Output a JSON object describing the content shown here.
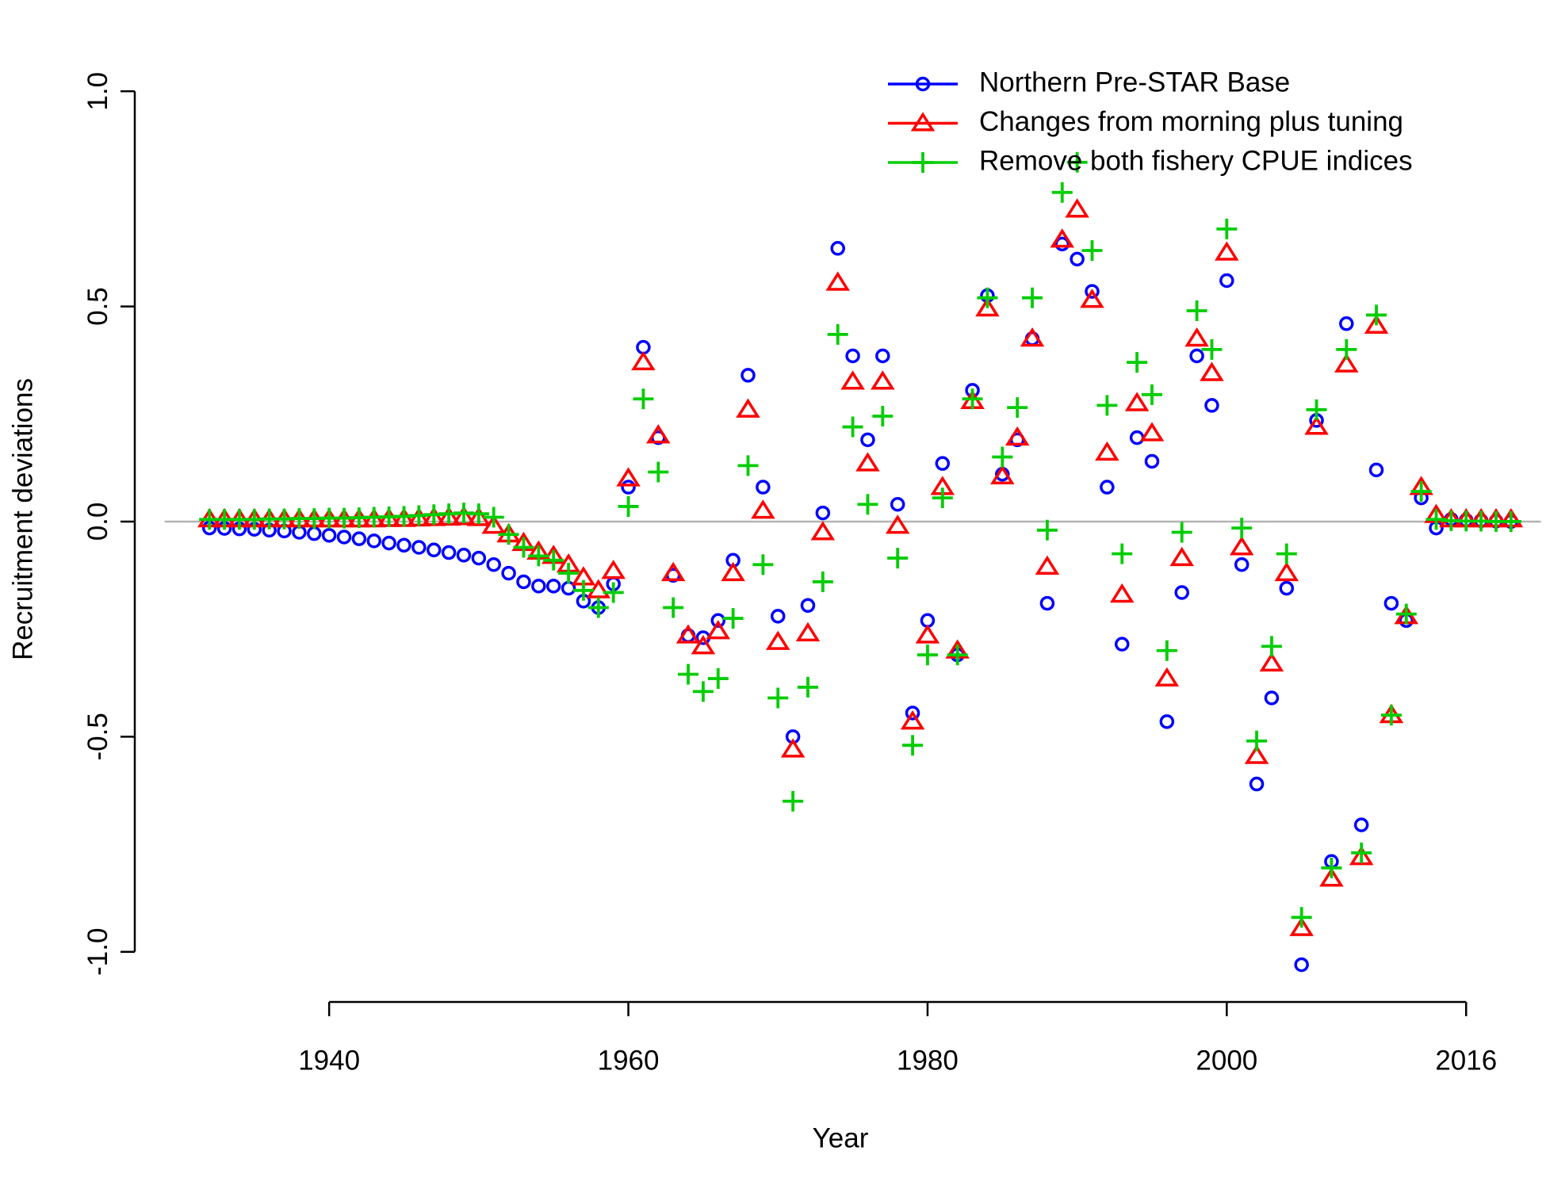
{
  "chart_data": {
    "type": "scatter",
    "xlabel": "Year",
    "ylabel": "Recruitment deviations",
    "x": [
      1932,
      1933,
      1934,
      1935,
      1936,
      1937,
      1938,
      1939,
      1940,
      1941,
      1942,
      1943,
      1944,
      1945,
      1946,
      1947,
      1948,
      1949,
      1950,
      1951,
      1952,
      1953,
      1954,
      1955,
      1956,
      1957,
      1958,
      1959,
      1960,
      1961,
      1962,
      1963,
      1964,
      1965,
      1966,
      1967,
      1968,
      1969,
      1970,
      1971,
      1972,
      1973,
      1974,
      1975,
      1976,
      1977,
      1978,
      1979,
      1980,
      1981,
      1982,
      1983,
      1984,
      1985,
      1986,
      1987,
      1988,
      1989,
      1990,
      1991,
      1992,
      1993,
      1994,
      1995,
      1996,
      1997,
      1998,
      1999,
      2000,
      2001,
      2002,
      2003,
      2004,
      2005,
      2006,
      2007,
      2008,
      2009,
      2010,
      2011,
      2012,
      2013,
      2014,
      2015,
      2016,
      2017,
      2018,
      2019
    ],
    "series": [
      {
        "name": "Northern Pre-STAR Base",
        "color": "#0000ff",
        "marker": "circle",
        "values": [
          -0.015,
          -0.016,
          -0.017,
          -0.018,
          -0.02,
          -0.022,
          -0.025,
          -0.028,
          -0.032,
          -0.036,
          -0.04,
          -0.045,
          -0.05,
          -0.055,
          -0.06,
          -0.066,
          -0.072,
          -0.078,
          -0.085,
          -0.1,
          -0.12,
          -0.14,
          -0.15,
          -0.15,
          -0.155,
          -0.185,
          -0.2,
          -0.145,
          0.08,
          0.405,
          0.195,
          -0.125,
          -0.265,
          -0.27,
          -0.23,
          -0.09,
          0.34,
          0.08,
          -0.22,
          -0.5,
          -0.195,
          0.02,
          0.635,
          0.385,
          0.19,
          0.385,
          0.04,
          -0.445,
          -0.23,
          0.135,
          -0.31,
          0.305,
          0.525,
          0.11,
          0.19,
          0.425,
          -0.19,
          0.645,
          0.61,
          0.535,
          0.08,
          -0.285,
          0.195,
          0.14,
          -0.465,
          -0.165,
          0.385,
          0.27,
          0.56,
          -0.1,
          -0.61,
          -0.41,
          -0.155,
          -1.03,
          0.235,
          -0.79,
          0.46,
          -0.705,
          0.12,
          -0.19,
          -0.23,
          0.055,
          -0.015,
          0.005,
          0.003,
          0.002,
          0.001,
          0.0
        ]
      },
      {
        "name": "Changes from morning plus tuning",
        "color": "#ff0000",
        "marker": "triangle",
        "values": [
          0.005,
          0.005,
          0.005,
          0.005,
          0.005,
          0.005,
          0.005,
          0.005,
          0.005,
          0.005,
          0.005,
          0.005,
          0.006,
          0.006,
          0.007,
          0.008,
          0.009,
          0.01,
          0.008,
          -0.01,
          -0.03,
          -0.05,
          -0.07,
          -0.08,
          -0.1,
          -0.13,
          -0.16,
          -0.115,
          0.1,
          0.37,
          0.2,
          -0.12,
          -0.265,
          -0.29,
          -0.255,
          -0.12,
          0.26,
          0.025,
          -0.28,
          -0.53,
          -0.26,
          -0.025,
          0.555,
          0.325,
          0.135,
          0.325,
          -0.01,
          -0.465,
          -0.265,
          0.08,
          -0.3,
          0.28,
          0.495,
          0.105,
          0.195,
          0.425,
          -0.105,
          0.655,
          0.725,
          0.515,
          0.16,
          -0.17,
          0.275,
          0.205,
          -0.365,
          -0.085,
          0.425,
          0.345,
          0.625,
          -0.06,
          -0.545,
          -0.33,
          -0.12,
          -0.945,
          0.22,
          -0.83,
          0.365,
          -0.78,
          0.455,
          -0.45,
          -0.22,
          0.08,
          0.015,
          0.005,
          0.005,
          0.005,
          0.005,
          0.005
        ]
      },
      {
        "name": "Remove both fishery CPUE indices",
        "color": "#00cd00",
        "marker": "plus",
        "values": [
          0.005,
          0.005,
          0.005,
          0.005,
          0.006,
          0.006,
          0.007,
          0.007,
          0.008,
          0.008,
          0.009,
          0.01,
          0.011,
          0.012,
          0.014,
          0.016,
          0.018,
          0.02,
          0.018,
          0.01,
          -0.03,
          -0.06,
          -0.08,
          -0.09,
          -0.12,
          -0.16,
          -0.2,
          -0.165,
          0.035,
          0.285,
          0.115,
          -0.2,
          -0.355,
          -0.395,
          -0.365,
          -0.225,
          0.13,
          -0.1,
          -0.41,
          -0.65,
          -0.385,
          -0.14,
          0.435,
          0.22,
          0.04,
          0.245,
          -0.085,
          -0.52,
          -0.31,
          0.055,
          -0.31,
          0.285,
          0.52,
          0.15,
          0.265,
          0.52,
          -0.02,
          0.765,
          0.835,
          0.63,
          0.27,
          -0.075,
          0.37,
          0.295,
          -0.3,
          -0.025,
          0.49,
          0.4,
          0.68,
          -0.015,
          -0.51,
          -0.29,
          -0.075,
          -0.92,
          0.26,
          -0.805,
          0.4,
          -0.77,
          0.48,
          -0.45,
          -0.215,
          0.07,
          0.005,
          0.002,
          0.001,
          0.001,
          0.0,
          0.0
        ]
      }
    ],
    "xlim": [
      1929,
      2021
    ],
    "ylim": [
      -1.1,
      1.1
    ],
    "xticks": [
      1940,
      1960,
      1980,
      2000,
      2016
    ],
    "yticks": [
      {
        "value": -1,
        "label": "-1.0"
      },
      -0.5,
      {
        "value": 0,
        "label": "0.0"
      },
      0.5,
      {
        "value": 1,
        "label": "1.0"
      }
    ],
    "reference_line": 0,
    "reference_color": "#b3b3b3",
    "legend": "top-right",
    "grid": false
  }
}
